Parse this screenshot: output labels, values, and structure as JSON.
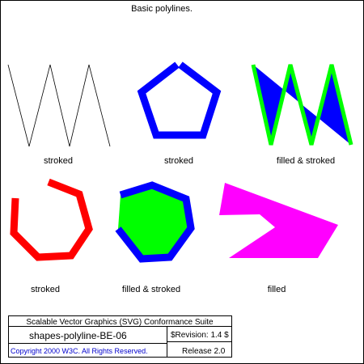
{
  "title": "Basic polylines.",
  "captions": {
    "row1_a": "stroked",
    "row1_b": "stroked",
    "row1_c": "filled & stroked",
    "row2_a": "stroked",
    "row2_b": "filled & stroked",
    "row2_c": "filled"
  },
  "footer": {
    "suite": "Scalable Vector Graphics (SVG) Conformance Suite",
    "test_name": "shapes-polyline-BE-06",
    "revision": "$Revision: 1.4 $",
    "copyright": "Copyright 2000 W3C. All Rights Reserved.",
    "release": "Release 2.0"
  },
  "colors": {
    "blue": "#0000ff",
    "lime": "#00ff00",
    "red": "#ff0000",
    "magenta": "#ff00ff",
    "copyright_text": "#0000cc"
  }
}
